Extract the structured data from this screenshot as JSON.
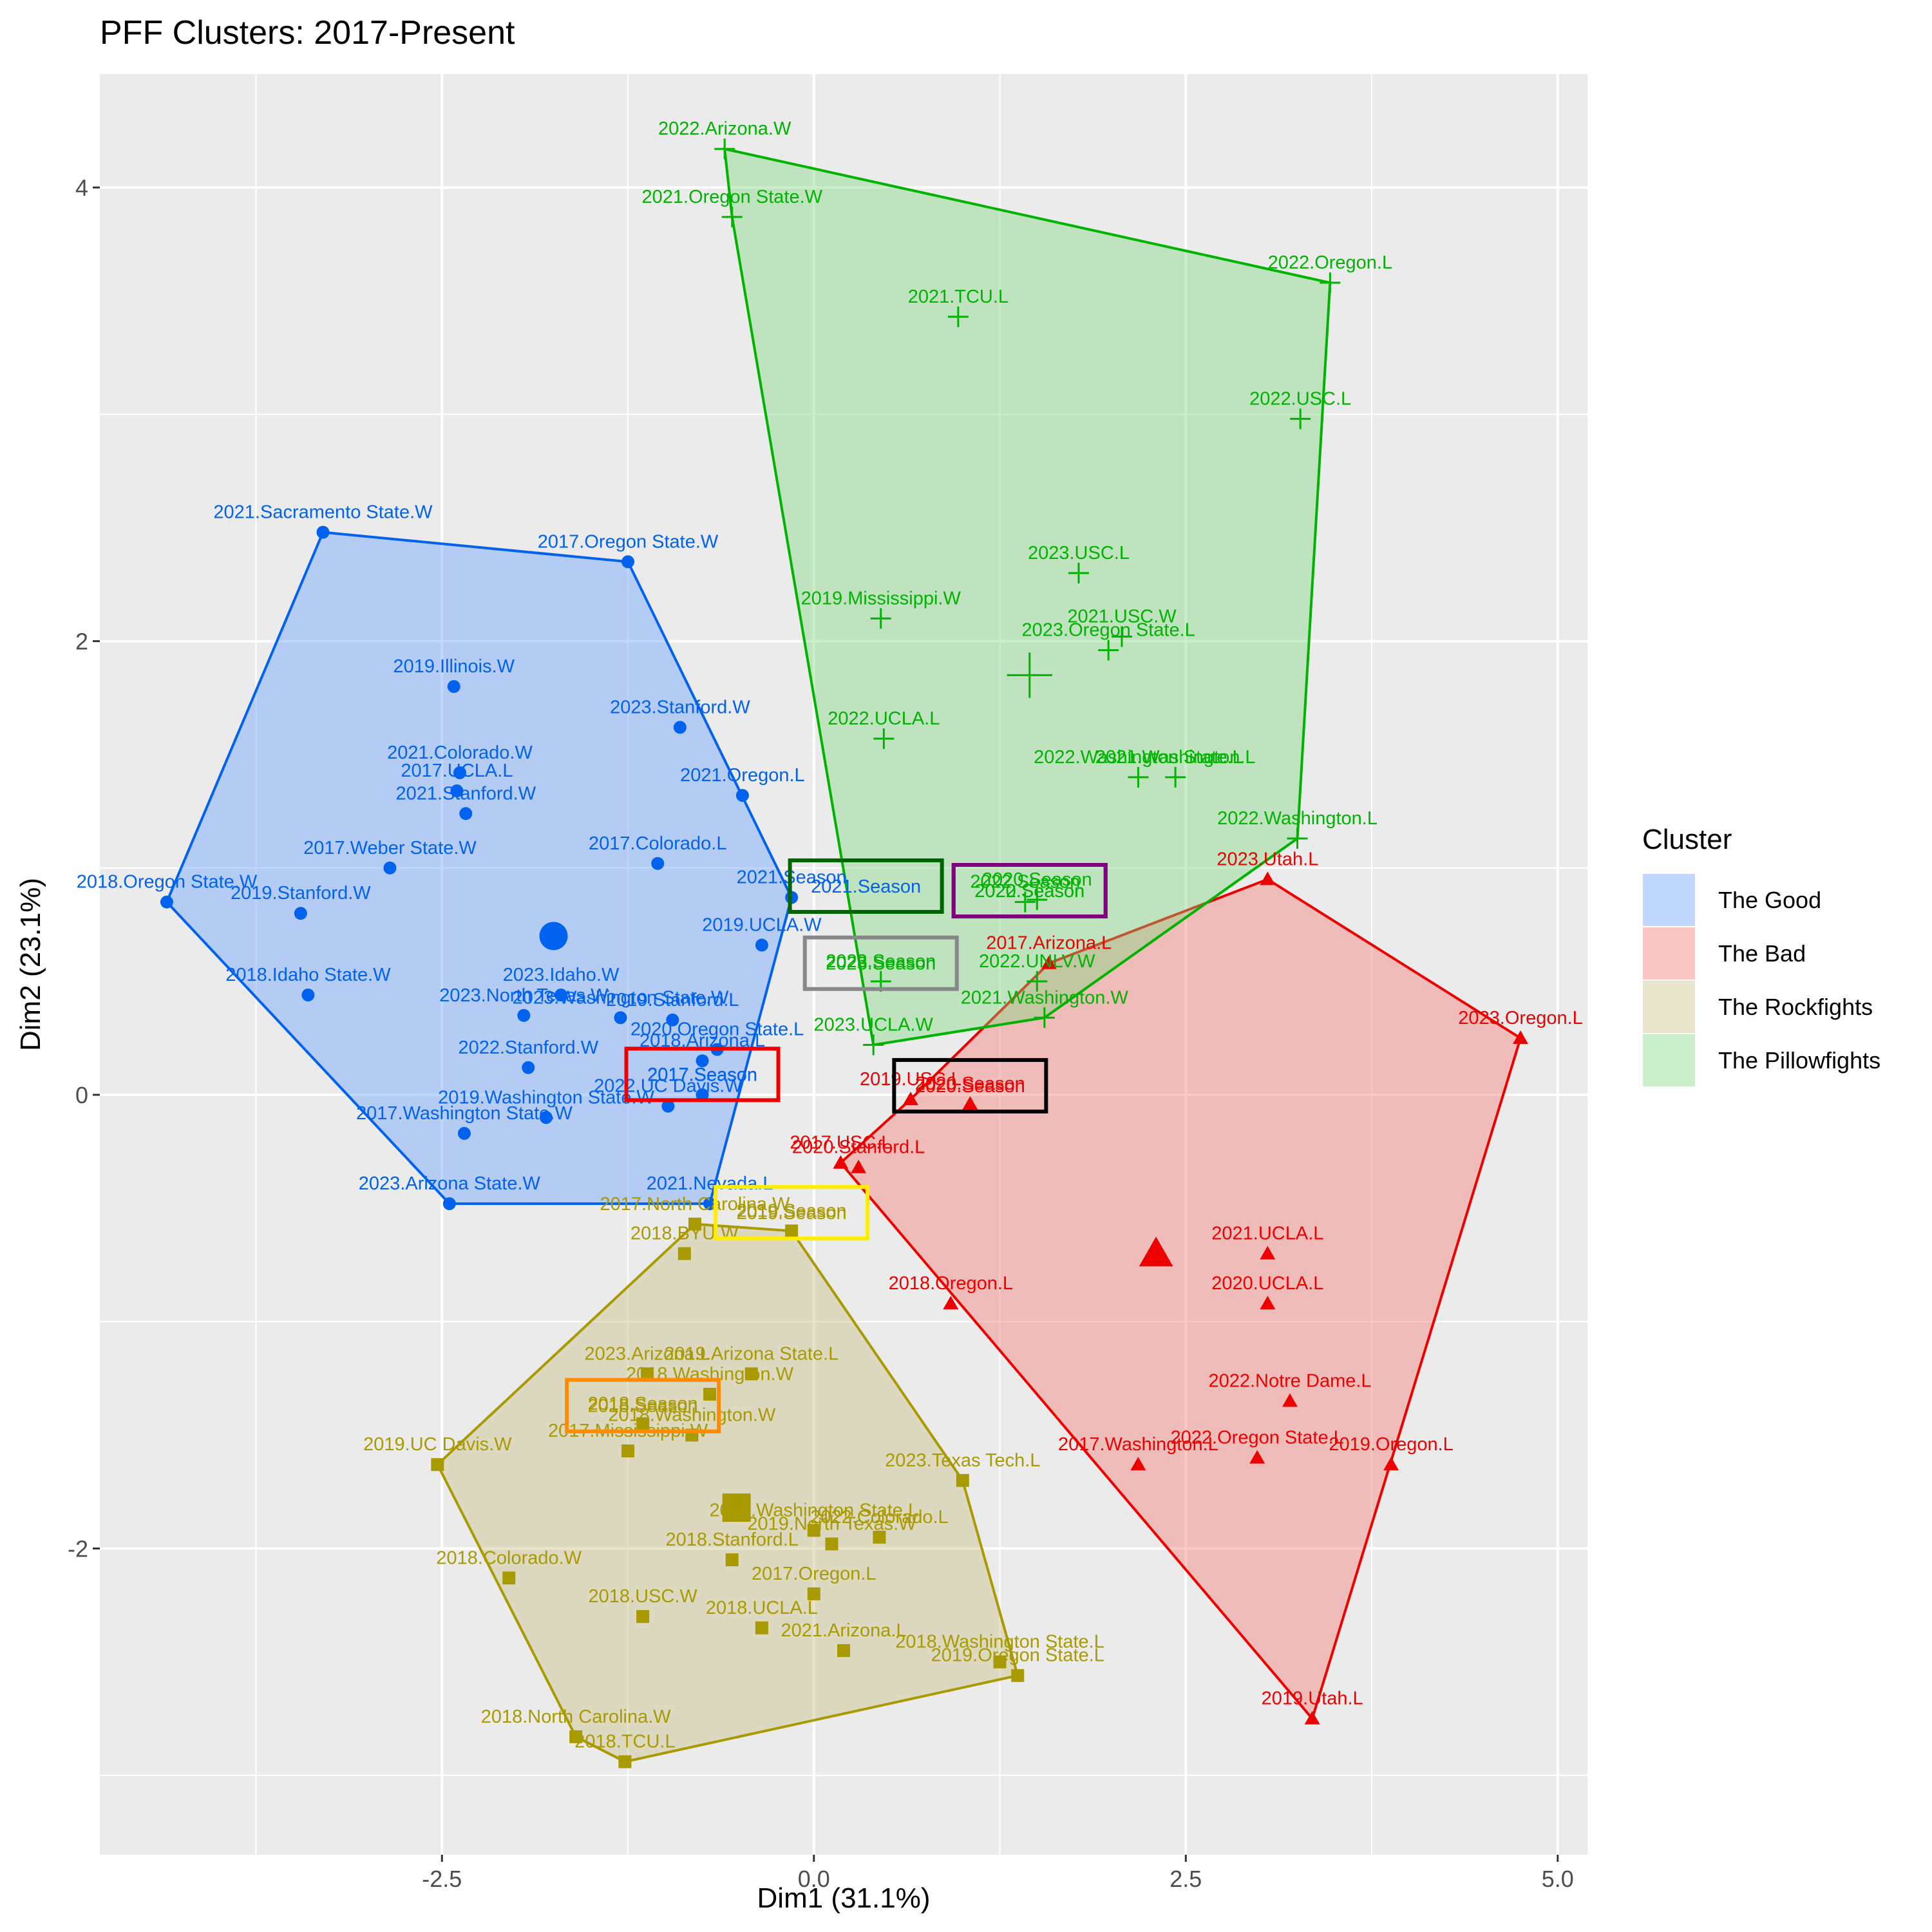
{
  "chart_data": {
    "type": "scatter",
    "title": "PFF Clusters: 2017-Present",
    "xlabel": "Dim1 (31.1%)",
    "ylabel": "Dim2 (23.1%)",
    "xlim": [
      -4.8,
      5.2
    ],
    "ylim": [
      -3.35,
      4.5
    ],
    "x_ticks": [
      -2.5,
      0.0,
      2.5,
      5.0
    ],
    "x_tick_labels": [
      "-2.5",
      "0.0",
      "2.5",
      "5.0"
    ],
    "y_ticks": [
      -2,
      0,
      2,
      4
    ],
    "y_tick_labels": [
      "-2",
      "0",
      "2",
      "4"
    ],
    "legend": {
      "title": "Cluster",
      "position": "right",
      "entries": [
        {
          "label": "The Good",
          "color": "#619CFF"
        },
        {
          "label": "The Bad",
          "color": "#F8766D"
        },
        {
          "label": "The Rockfights",
          "color": "#C9BE82"
        },
        {
          "label": "The Pillowfights",
          "color": "#7BD67B"
        }
      ]
    },
    "clusters": [
      {
        "name": "The Good",
        "color": "#0062EE",
        "fill": "#619CFF",
        "marker": "circle",
        "center": [
          -1.75,
          0.7
        ],
        "hull": [
          [
            -4.35,
            0.85
          ],
          [
            -3.3,
            2.48
          ],
          [
            -1.25,
            2.35
          ],
          [
            -0.15,
            0.87
          ],
          [
            -0.7,
            -0.48
          ],
          [
            -2.45,
            -0.48
          ]
        ],
        "points": [
          {
            "label": "2021.Sacramento State.W",
            "x": -3.3,
            "y": 2.48
          },
          {
            "label": "2017.Oregon State.W",
            "x": -1.25,
            "y": 2.35
          },
          {
            "label": "2019.Illinois.W",
            "x": -2.42,
            "y": 1.8
          },
          {
            "label": "2023.Stanford.W",
            "x": -0.9,
            "y": 1.62
          },
          {
            "label": "2021.Colorado.W",
            "x": -2.38,
            "y": 1.42
          },
          {
            "label": "2017.UCLA.L",
            "x": -2.4,
            "y": 1.34
          },
          {
            "label": "2021.Stanford.W",
            "x": -2.34,
            "y": 1.24
          },
          {
            "label": "2021.Oregon.L",
            "x": -0.48,
            "y": 1.32
          },
          {
            "label": "2017.Weber State.W",
            "x": -2.85,
            "y": 1.0
          },
          {
            "label": "2017.Colorado.L",
            "x": -1.05,
            "y": 1.02
          },
          {
            "label": "2018.Oregon State.W",
            "x": -4.35,
            "y": 0.85
          },
          {
            "label": "2019.Stanford.W",
            "x": -3.45,
            "y": 0.8
          },
          {
            "label": "2021.Season",
            "x": -0.15,
            "y": 0.87
          },
          {
            "label": "2019.UCLA.W",
            "x": -0.35,
            "y": 0.66
          },
          {
            "label": "2018.Idaho State.W",
            "x": -3.4,
            "y": 0.44
          },
          {
            "label": "2023.Idaho.W",
            "x": -1.7,
            "y": 0.44
          },
          {
            "label": "2023.North Texas.W",
            "x": -1.95,
            "y": 0.35
          },
          {
            "label": "2023.Washington State.W",
            "x": -1.3,
            "y": 0.34
          },
          {
            "label": "2019.Stanford.L",
            "x": -0.95,
            "y": 0.33
          },
          {
            "label": "2020.Oregon State.L",
            "x": -0.65,
            "y": 0.2
          },
          {
            "label": "2018.Arizona.L",
            "x": -0.75,
            "y": 0.15
          },
          {
            "label": "2022.Stanford.W",
            "x": -1.92,
            "y": 0.12
          },
          {
            "label": "2017.Season",
            "x": -0.75,
            "y": 0.0
          },
          {
            "label": "2019.Washington State.W",
            "x": -1.8,
            "y": -0.1
          },
          {
            "label": "2022.UC Davis.W",
            "x": -0.98,
            "y": -0.05
          },
          {
            "label": "2017.Washington State.W",
            "x": -2.35,
            "y": -0.17
          },
          {
            "label": "2023.Arizona State.W",
            "x": -2.45,
            "y": -0.48
          },
          {
            "label": "2021.Nevada.L",
            "x": -0.7,
            "y": -0.48
          }
        ]
      },
      {
        "name": "The Bad",
        "color": "#EE0000",
        "fill": "#F8766D",
        "marker": "triangle",
        "center": [
          2.3,
          -0.7
        ],
        "hull": [
          [
            3.05,
            0.95
          ],
          [
            4.75,
            0.25
          ],
          [
            3.35,
            -2.75
          ],
          [
            0.18,
            -0.3
          ],
          [
            0.65,
            -0.02
          ],
          [
            1.58,
            0.58
          ]
        ],
        "points": [
          {
            "label": "2023.Utah.L",
            "x": 3.05,
            "y": 0.95
          },
          {
            "label": "2017.Arizona.L",
            "x": 1.58,
            "y": 0.58
          },
          {
            "label": "2023.Oregon.L",
            "x": 4.75,
            "y": 0.25
          },
          {
            "label": "2019.USC.L",
            "x": 0.65,
            "y": -0.02
          },
          {
            "label": "2020.Season",
            "x": 1.05,
            "y": -0.04
          },
          {
            "label": "2017.USC.L",
            "x": 0.18,
            "y": -0.3
          },
          {
            "label": "2020.Stanford.L",
            "x": 0.3,
            "y": -0.32
          },
          {
            "label": "2021.UCLA.L",
            "x": 3.05,
            "y": -0.7
          },
          {
            "label": "2020.UCLA.L",
            "x": 3.05,
            "y": -0.92
          },
          {
            "label": "2018.Oregon.L",
            "x": 0.92,
            "y": -0.92
          },
          {
            "label": "2022.Notre Dame.L",
            "x": 3.2,
            "y": -1.35
          },
          {
            "label": "2017.Washington.L",
            "x": 2.18,
            "y": -1.63
          },
          {
            "label": "2022.Oregon State.L",
            "x": 2.98,
            "y": -1.6
          },
          {
            "label": "2019.Oregon.L",
            "x": 3.88,
            "y": -1.63
          },
          {
            "label": "2019.Utah.L",
            "x": 3.35,
            "y": -2.75
          }
        ]
      },
      {
        "name": "The Rockfights",
        "color": "#A89A00",
        "fill": "#C9BE82",
        "marker": "square",
        "center": [
          -0.52,
          -1.82
        ],
        "hull": [
          [
            -0.8,
            -0.57
          ],
          [
            -0.15,
            -0.6
          ],
          [
            1.0,
            -1.7
          ],
          [
            1.37,
            -2.56
          ],
          [
            -1.27,
            -2.94
          ],
          [
            -1.6,
            -2.83
          ],
          [
            -2.53,
            -1.63
          ]
        ],
        "points": [
          {
            "label": "2017.North Carolina.W",
            "x": -0.8,
            "y": -0.57
          },
          {
            "label": "2019.Season",
            "x": -0.15,
            "y": -0.6
          },
          {
            "label": "2018.BYU.W",
            "x": -0.87,
            "y": -0.7
          },
          {
            "label": "2023.Arizona.L",
            "x": -1.12,
            "y": -1.23
          },
          {
            "label": "2019.Arizona State.L",
            "x": -0.42,
            "y": -1.23
          },
          {
            "label": "2018.Washington.W",
            "x": -0.7,
            "y": -1.32
          },
          {
            "label": "2018.Season",
            "x": -1.15,
            "y": -1.45
          },
          {
            "label": "2018.Washington.W",
            "x": -0.82,
            "y": -1.5
          },
          {
            "label": "2017.Mississippi.W",
            "x": -1.25,
            "y": -1.57
          },
          {
            "label": "2019.UC Davis.W",
            "x": -2.53,
            "y": -1.63
          },
          {
            "label": "2023.Texas Tech.L",
            "x": 1.0,
            "y": -1.7
          },
          {
            "label": "2022.Washington State.L",
            "x": 0.0,
            "y": -1.92
          },
          {
            "label": "2019.North Texas.W",
            "x": 0.12,
            "y": -1.98
          },
          {
            "label": "2022.Colorado.L",
            "x": 0.44,
            "y": -1.95
          },
          {
            "label": "2018.Stanford.L",
            "x": -0.55,
            "y": -2.05
          },
          {
            "label": "2018.Colorado.W",
            "x": -2.05,
            "y": -2.13
          },
          {
            "label": "2017.Oregon.L",
            "x": 0.0,
            "y": -2.2
          },
          {
            "label": "2018.USC.W",
            "x": -1.15,
            "y": -2.3
          },
          {
            "label": "2018.UCLA.L",
            "x": -0.35,
            "y": -2.35
          },
          {
            "label": "2021.Arizona.L",
            "x": 0.2,
            "y": -2.45
          },
          {
            "label": "2018.Washington State.L",
            "x": 1.25,
            "y": -2.5
          },
          {
            "label": "2019.Oregon State.L",
            "x": 1.37,
            "y": -2.56
          },
          {
            "label": "2018.North Carolina.W",
            "x": -1.6,
            "y": -2.83
          },
          {
            "label": "2018.TCU.L",
            "x": -1.27,
            "y": -2.94
          }
        ]
      },
      {
        "name": "The Pillowfights",
        "color": "#00B300",
        "fill": "#7BD67B",
        "marker": "plus",
        "center": [
          1.45,
          1.85
        ],
        "hull": [
          [
            -0.6,
            4.17
          ],
          [
            3.47,
            3.58
          ],
          [
            3.25,
            1.13
          ],
          [
            1.55,
            0.34
          ],
          [
            0.4,
            0.22
          ],
          [
            -0.55,
            3.87
          ]
        ],
        "points": [
          {
            "label": "2022.Arizona.W",
            "x": -0.6,
            "y": 4.17
          },
          {
            "label": "2021.Oregon State.W",
            "x": -0.55,
            "y": 3.87
          },
          {
            "label": "2022.Oregon.L",
            "x": 3.47,
            "y": 3.58
          },
          {
            "label": "2021.TCU.L",
            "x": 0.97,
            "y": 3.43
          },
          {
            "label": "2022.USC.L",
            "x": 3.27,
            "y": 2.98
          },
          {
            "label": "2023.USC.L",
            "x": 1.78,
            "y": 2.3
          },
          {
            "label": "2019.Mississippi.W",
            "x": 0.45,
            "y": 2.1
          },
          {
            "label": "2021.USC.W",
            "x": 2.07,
            "y": 2.02
          },
          {
            "label": "2023.Oregon State.L",
            "x": 1.98,
            "y": 1.96
          },
          {
            "label": "2022.UCLA.L",
            "x": 0.47,
            "y": 1.57
          },
          {
            "label": "2022.Washington State.L",
            "x": 2.18,
            "y": 1.4
          },
          {
            "label": "2021.Washington.L",
            "x": 2.43,
            "y": 1.4
          },
          {
            "label": "2022.Washington.L",
            "x": 3.25,
            "y": 1.13
          },
          {
            "label": "2022.Season",
            "x": 1.42,
            "y": 0.85
          },
          {
            "label": "2020.Season",
            "x": 1.5,
            "y": 0.86
          },
          {
            "label": "2023.Season",
            "x": 0.45,
            "y": 0.5
          },
          {
            "label": "2022.UNLV.W",
            "x": 1.5,
            "y": 0.5
          },
          {
            "label": "2021.Washington.W",
            "x": 1.55,
            "y": 0.34
          },
          {
            "label": "2023.UCLA.W",
            "x": 0.4,
            "y": 0.22
          }
        ]
      }
    ],
    "season_boxes": [
      {
        "label": "2021.Season",
        "x": 0.35,
        "y": 0.92,
        "color": "#006400",
        "text_color": "#0062EE"
      },
      {
        "label": "2022.Season",
        "x": 1.45,
        "y": 0.9,
        "color": "#800080",
        "text_color": "#00B300"
      },
      {
        "label": "2020.Season",
        "x": 1.45,
        "y": 0.9,
        "color": "#800080",
        "text_color": "#00B300"
      },
      {
        "label": "2023.Season",
        "x": 0.45,
        "y": 0.58,
        "color": "#888888",
        "text_color": "#00B300"
      },
      {
        "label": "2017.Season",
        "x": -0.75,
        "y": 0.09,
        "color": "#EE0000",
        "text_color": "#0062EE"
      },
      {
        "label": "2020.Season",
        "x": 1.05,
        "y": 0.04,
        "color": "#000000",
        "text_color": "#EE0000"
      },
      {
        "label": "2019.Season",
        "x": -0.15,
        "y": -0.52,
        "color": "#FFEE00",
        "text_color": "#A89A00"
      },
      {
        "label": "2018.Season",
        "x": -1.15,
        "y": -1.37,
        "color": "#FF8C00",
        "text_color": "#A89A00"
      }
    ]
  }
}
